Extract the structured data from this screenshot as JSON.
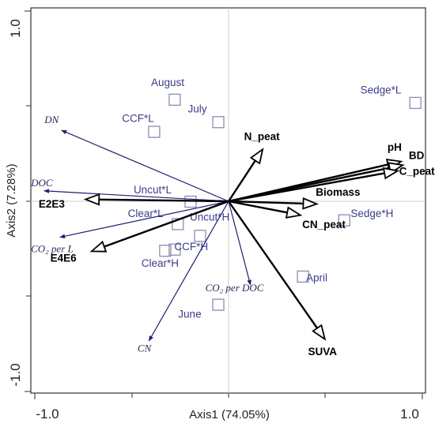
{
  "chart_data": {
    "type": "biplot",
    "xlabel": "Axis1 (74.05%)",
    "ylabel": "Axis2 (7.28%)",
    "xlim": [
      -1.05,
      1.02
    ],
    "ylim": [
      -1.04,
      1.03
    ],
    "x_ticks": [
      -1.0,
      1.0
    ],
    "y_ticks": [
      -1.0,
      1.0
    ],
    "tick_labels": {
      "x_neg": "-1.0",
      "x_pos": "1.0",
      "y_neg": "-1.0",
      "y_pos": "1.0"
    },
    "colors": {
      "blue": "#1f1f73",
      "black": "#000000",
      "site": "#8c8cb4",
      "site_text": "#3c3c8c"
    },
    "sites": [
      {
        "label": "August",
        "x": -0.278,
        "y": 0.534,
        "lx": -0.4,
        "ly": 0.605
      },
      {
        "label": "July",
        "x": -0.053,
        "y": 0.416,
        "lx": -0.21,
        "ly": 0.466
      },
      {
        "label": "CCF*L",
        "x": -0.384,
        "y": 0.365,
        "lx": -0.55,
        "ly": 0.418
      },
      {
        "label": "Sedge*L",
        "x": 0.964,
        "y": 0.517,
        "lx": 0.68,
        "ly": 0.567
      },
      {
        "label": "Uncut*L",
        "x": -0.196,
        "y": -0.002,
        "lx": -0.49,
        "ly": 0.042
      },
      {
        "label": "Clear*L",
        "x": -0.262,
        "y": -0.12,
        "lx": -0.52,
        "ly": -0.082
      },
      {
        "label": "Uncut*H",
        "x": -0.147,
        "y": -0.182,
        "lx": -0.2,
        "ly": -0.102
      },
      {
        "label": "CCF*H",
        "x": -0.278,
        "y": -0.254,
        "lx": -0.28,
        "ly": -0.258
      },
      {
        "label": "Clear*H",
        "x": -0.327,
        "y": -0.26,
        "lx": -0.45,
        "ly": -0.345
      },
      {
        "label": "Sedge*H",
        "x": 0.597,
        "y": -0.1,
        "lx": 0.63,
        "ly": -0.082
      },
      {
        "label": "April",
        "x": 0.384,
        "y": -0.396,
        "lx": 0.4,
        "ly": -0.422
      },
      {
        "label": "June",
        "x": -0.053,
        "y": -0.544,
        "lx": -0.26,
        "ly": -0.612
      }
    ],
    "blue_vectors": [
      {
        "label": "DN",
        "x": -0.862,
        "y": 0.373,
        "lx": -0.95,
        "ly": 0.411
      },
      {
        "label": "DOC",
        "x": -0.952,
        "y": 0.055,
        "lx": -1.02,
        "ly": 0.079
      },
      {
        "label": "CO₂ per L",
        "x": -0.87,
        "y": -0.189,
        "lx": -1.02,
        "ly": -0.268
      },
      {
        "label": "CO₂ per DOC",
        "x": 0.113,
        "y": -0.44,
        "lx": -0.12,
        "ly": -0.472
      },
      {
        "label": "CN",
        "x": -0.411,
        "y": -0.734,
        "lx": -0.47,
        "ly": -0.79
      }
    ],
    "black_vectors": [
      {
        "label": "N_peat",
        "x": 0.176,
        "y": 0.273,
        "lx": 0.08,
        "ly": 0.321
      },
      {
        "label": "pH",
        "x": 0.89,
        "y": 0.209,
        "lx": 0.82,
        "ly": 0.265
      },
      {
        "label": "BD",
        "x": 0.899,
        "y": 0.19,
        "lx": 0.93,
        "ly": 0.221
      },
      {
        "label": "C_peat",
        "x": 0.873,
        "y": 0.16,
        "lx": 0.88,
        "ly": 0.14
      },
      {
        "label": "Biomass",
        "x": 0.455,
        "y": -0.014,
        "lx": 0.45,
        "ly": 0.029
      },
      {
        "label": "CN_peat",
        "x": 0.371,
        "y": -0.073,
        "lx": 0.38,
        "ly": -0.141
      },
      {
        "label": "E2E3",
        "x": -0.738,
        "y": 0.01,
        "lx": -0.98,
        "ly": -0.033
      },
      {
        "label": "E4E6",
        "x": -0.707,
        "y": -0.263,
        "lx": -0.92,
        "ly": -0.318
      },
      {
        "label": "SUVA",
        "x": 0.497,
        "y": -0.725,
        "lx": 0.41,
        "ly": -0.81
      }
    ]
  }
}
